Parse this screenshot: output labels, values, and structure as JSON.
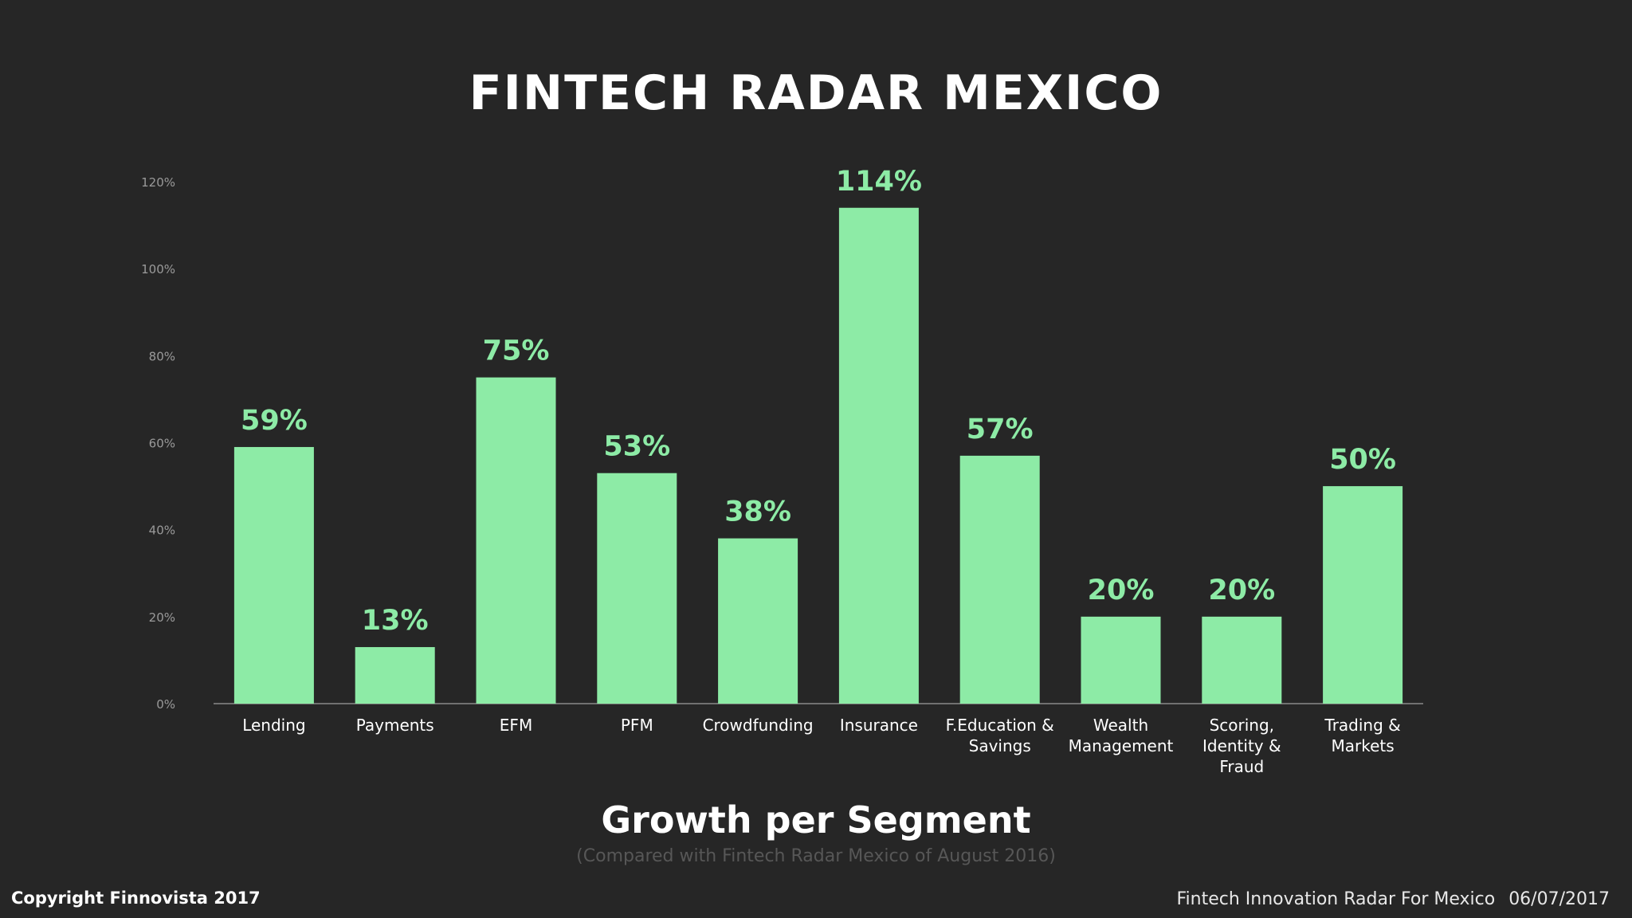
{
  "colors": {
    "background": "#262626",
    "bar": "#8deba6",
    "value_label": "#8deba6",
    "axis_tick": "#9a9a9a",
    "axis_line": "#8a8a8a",
    "text": "#ffffff"
  },
  "header": {
    "title": "FINTECH RADAR MEXICO"
  },
  "chart_data": {
    "type": "bar",
    "title": "Growth per Segment",
    "subtitle": "(Compared with Fintech Radar Mexico of August 2016)",
    "categories": [
      [
        "Lending"
      ],
      [
        "Payments"
      ],
      [
        "EFM"
      ],
      [
        "PFM"
      ],
      [
        "Crowdfunding"
      ],
      [
        "Insurance"
      ],
      [
        "F.Education &",
        "Savings"
      ],
      [
        "Wealth",
        "Management"
      ],
      [
        "Scoring,",
        "Identity &",
        "Fraud"
      ],
      [
        "Trading &",
        "Markets"
      ]
    ],
    "values": [
      59,
      13,
      75,
      53,
      38,
      114,
      57,
      20,
      20,
      50
    ],
    "value_labels": [
      "59%",
      "13%",
      "75%",
      "53%",
      "38%",
      "114%",
      "57%",
      "20%",
      "20%",
      "50%"
    ],
    "ylim": [
      0,
      120
    ],
    "yticks": [
      0,
      20,
      40,
      60,
      80,
      100,
      120
    ],
    "ytick_labels": [
      "0%",
      "20%",
      "40%",
      "60%",
      "80%",
      "100%",
      "120%"
    ],
    "xlabel": "",
    "ylabel": "",
    "grid": false
  },
  "footer": {
    "copyright": "Copyright Finnovista 2017",
    "source": "Fintech Innovation Radar For Mexico",
    "date": "06/07/2017"
  }
}
